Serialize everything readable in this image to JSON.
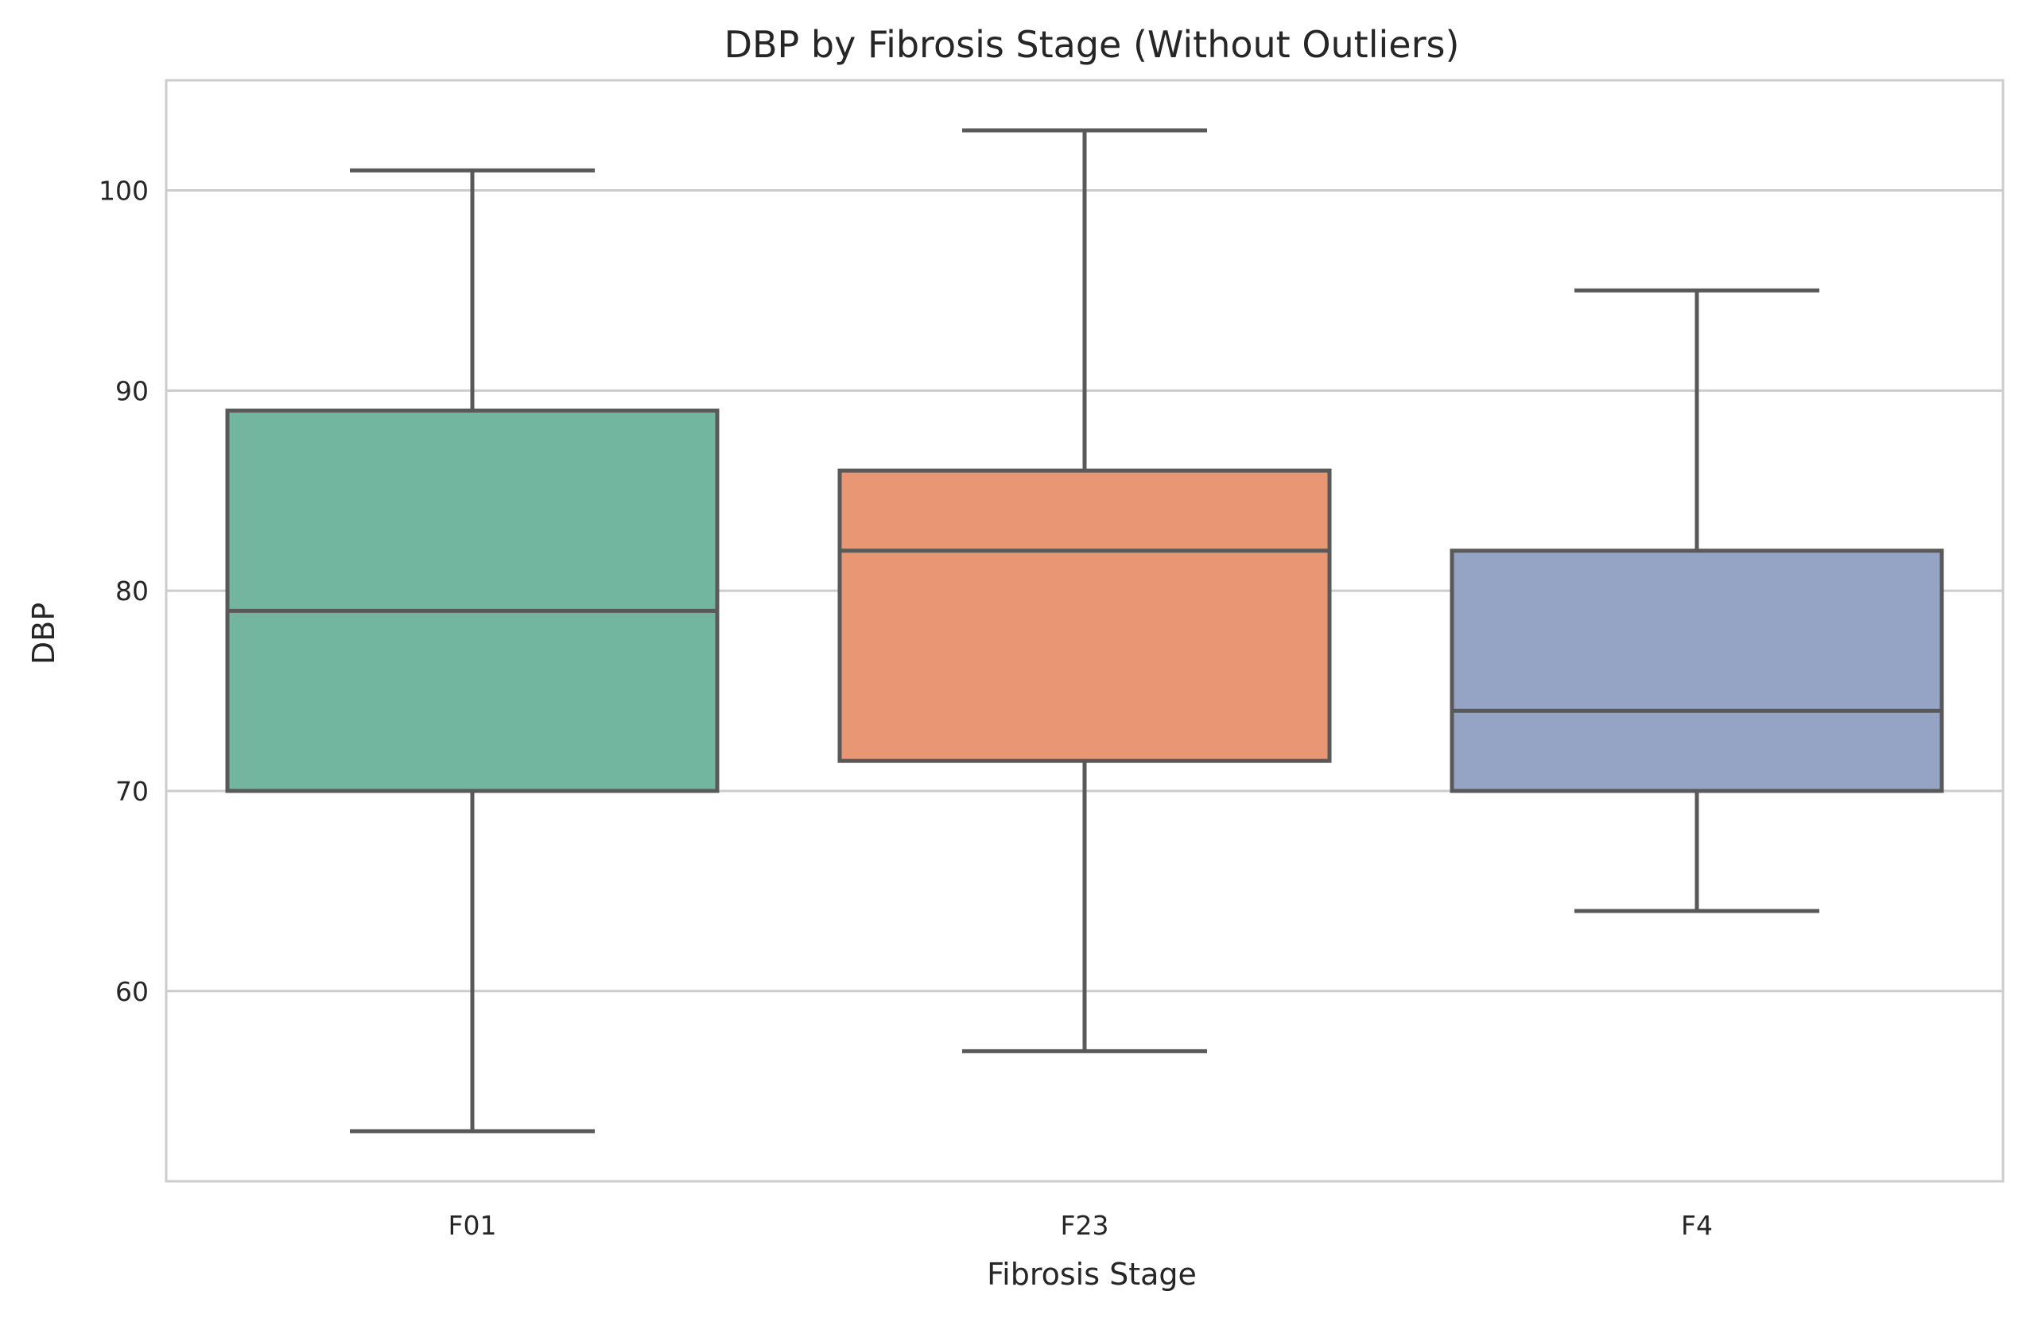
{
  "chart_data": {
    "type": "box",
    "title": "DBP by Fibrosis Stage (Without Outliers)",
    "xlabel": "Fibrosis Stage",
    "ylabel": "DBP",
    "ylim": [
      50.5,
      105.5
    ],
    "yticks": [
      60,
      70,
      80,
      90,
      100
    ],
    "grid": true,
    "categories": [
      "F01",
      "F23",
      "F4"
    ],
    "boxes": [
      {
        "category": "F01",
        "whisker_low": 53,
        "q1": 70,
        "median": 79,
        "q3": 89,
        "whisker_high": 101,
        "color": "#73b6a0"
      },
      {
        "category": "F23",
        "whisker_low": 57,
        "q1": 71.5,
        "median": 82,
        "q3": 86,
        "whisker_high": 103,
        "color": "#e99675"
      },
      {
        "category": "F4",
        "whisker_low": 64,
        "q1": 70,
        "median": 74,
        "q3": 82,
        "whisker_high": 95,
        "color": "#95a4c4"
      }
    ]
  }
}
